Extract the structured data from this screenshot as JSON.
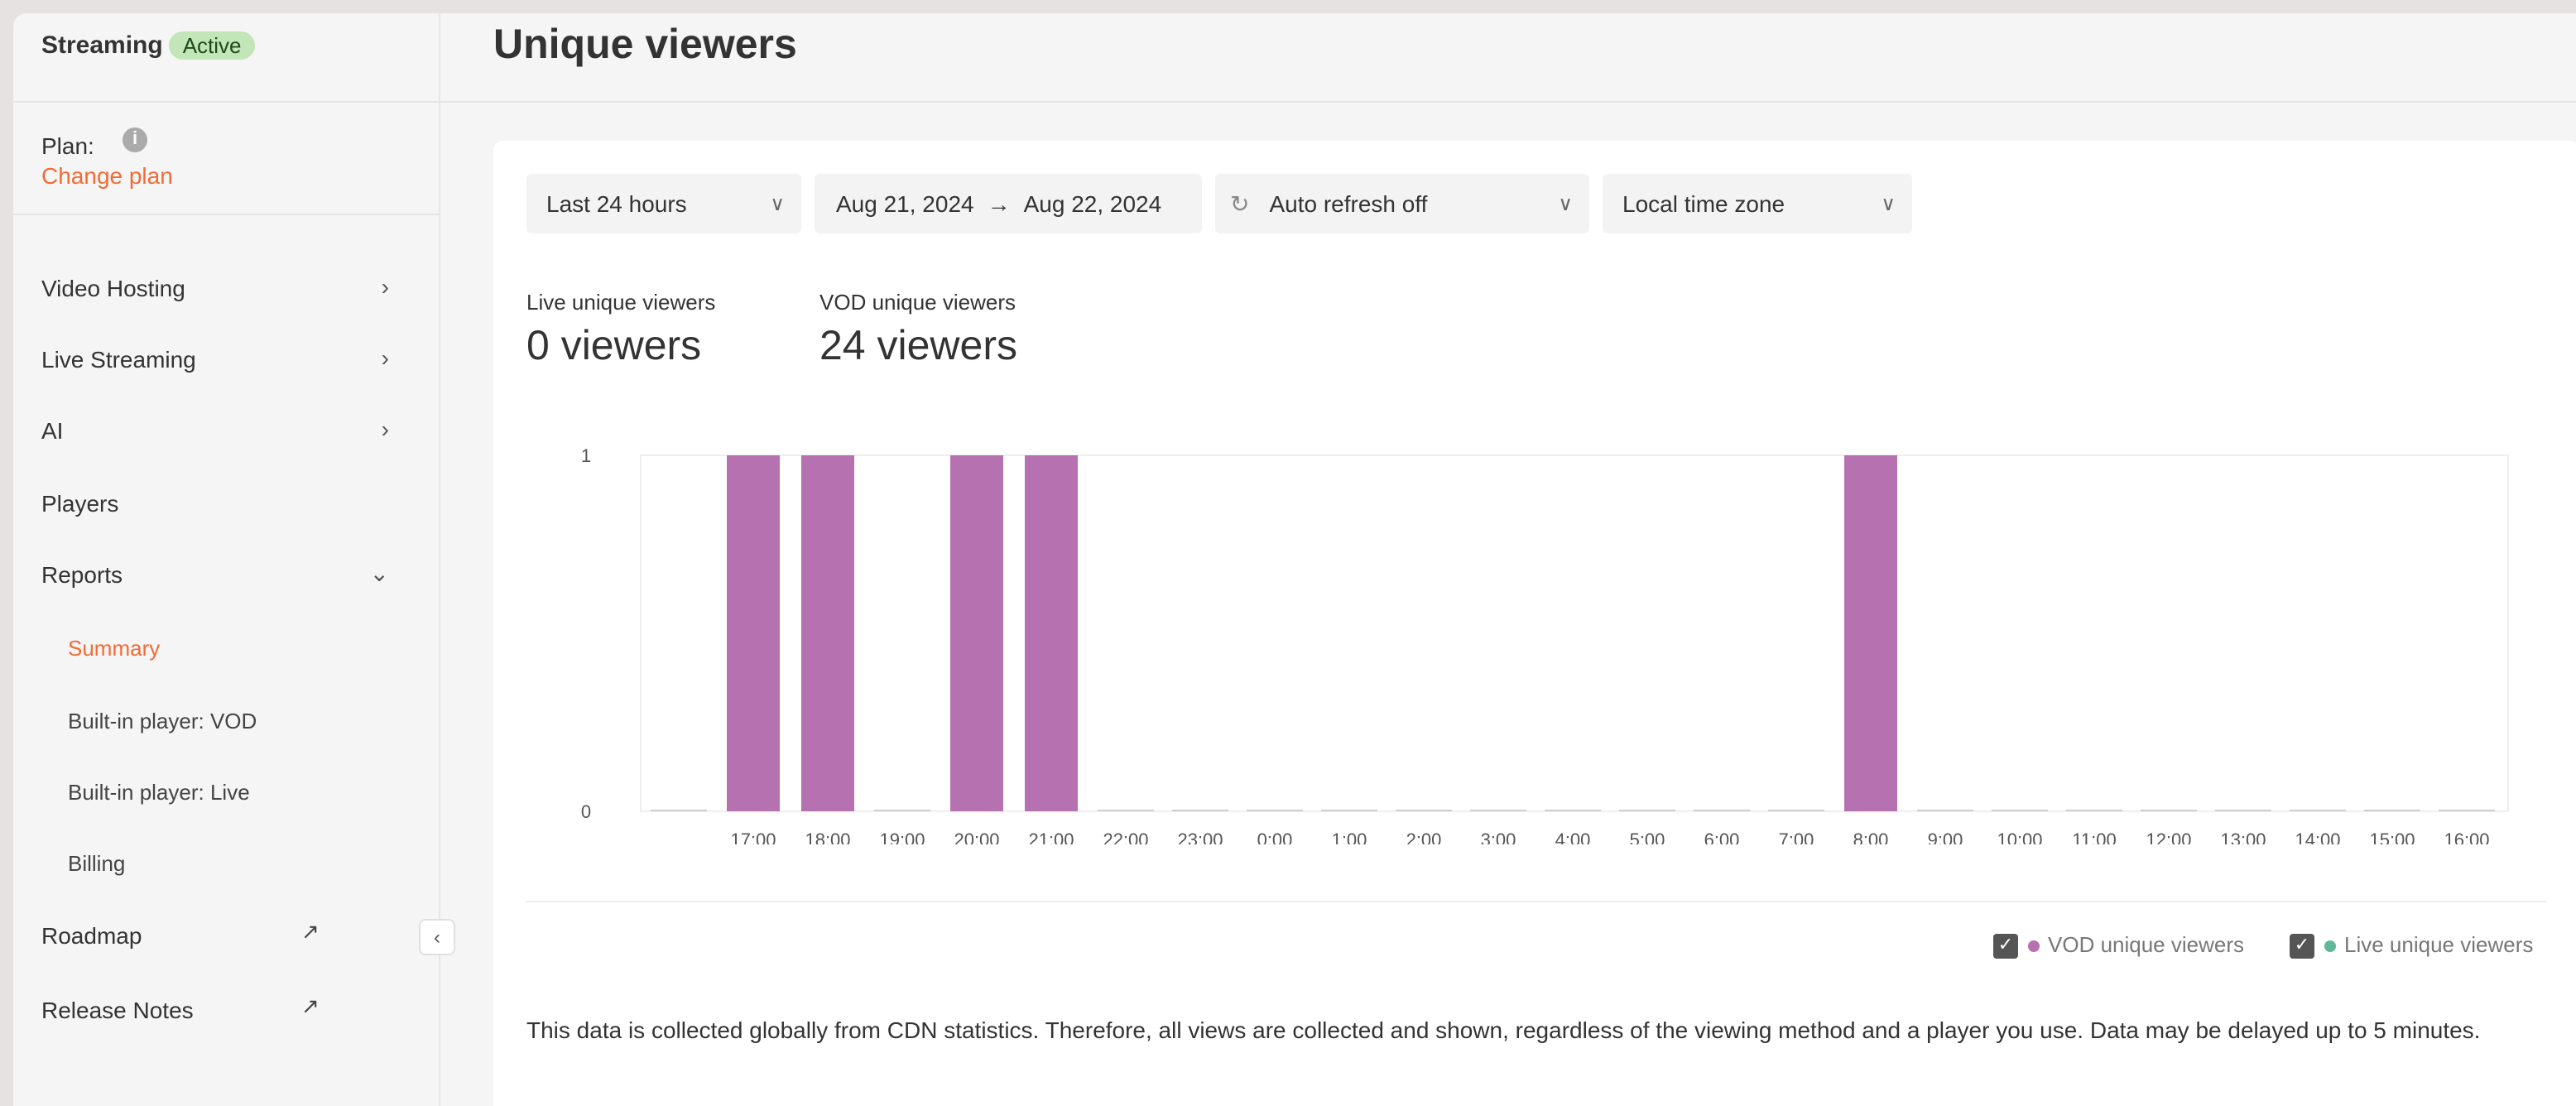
{
  "sidebar": {
    "brand": "Streaming",
    "status_badge": "Active",
    "plan_label": "Plan:",
    "change_plan": "Change plan",
    "items": [
      {
        "label": "Video Hosting",
        "icon": "chevron-right"
      },
      {
        "label": "Live Streaming",
        "icon": "chevron-right"
      },
      {
        "label": "AI",
        "icon": "chevron-right"
      },
      {
        "label": "Players"
      },
      {
        "label": "Reports",
        "icon": "chevron-down"
      }
    ],
    "sub_items": [
      "Summary",
      "Built-in player: VOD",
      "Built-in player: Live",
      "Billing"
    ],
    "active_sub": "Summary",
    "links": [
      {
        "label": "Roadmap",
        "icon": "external-link"
      },
      {
        "label": "Release Notes",
        "icon": "external-link"
      }
    ]
  },
  "page": {
    "title": "Unique viewers"
  },
  "filters": {
    "period": "Last 24 hours",
    "date_from": "Aug 21, 2024",
    "date_to": "Aug 22, 2024",
    "auto_refresh": "Auto refresh off",
    "timezone": "Local time zone"
  },
  "stats": [
    {
      "label": "Live unique viewers",
      "value": "0 viewers"
    },
    {
      "label": "VOD unique viewers",
      "value": "24 viewers"
    }
  ],
  "colors": {
    "accent": "#f26b35",
    "vod": "#b571b0",
    "live": "#5fb89b"
  },
  "chart_data": {
    "type": "bar",
    "categories": [
      "",
      "17:00",
      "18:00",
      "19:00",
      "20:00",
      "21:00",
      "22:00",
      "23:00",
      "0:00",
      "1:00",
      "2:00",
      "3:00",
      "4:00",
      "5:00",
      "6:00",
      "7:00",
      "8:00",
      "9:00",
      "10:00",
      "11:00",
      "12:00",
      "13:00",
      "14:00",
      "15:00",
      "16:00"
    ],
    "series": [
      {
        "name": "VOD unique viewers",
        "color": "#b571b0",
        "values": [
          0,
          1,
          1,
          0,
          1,
          1,
          0,
          0,
          0,
          0,
          0,
          0,
          0,
          0,
          0,
          0,
          1,
          0,
          0,
          0,
          0,
          0,
          0,
          0,
          0
        ]
      },
      {
        "name": "Live unique viewers",
        "color": "#5fb89b",
        "values": [
          0,
          0,
          0,
          0,
          0,
          0,
          0,
          0,
          0,
          0,
          0,
          0,
          0,
          0,
          0,
          0,
          0,
          0,
          0,
          0,
          0,
          0,
          0,
          0,
          0
        ]
      }
    ],
    "yticks": [
      "0",
      "1"
    ],
    "ylim": [
      0,
      1
    ],
    "grid": false,
    "legend": "bottom-right"
  },
  "legend": [
    {
      "label": "VOD unique viewers",
      "checked": true
    },
    {
      "label": "Live unique viewers",
      "checked": true
    }
  ],
  "note": "This data is collected globally from CDN statistics. Therefore, all views are collected and shown, regardless of the viewing method and a player you use. Data may be delayed up to 5 minutes."
}
